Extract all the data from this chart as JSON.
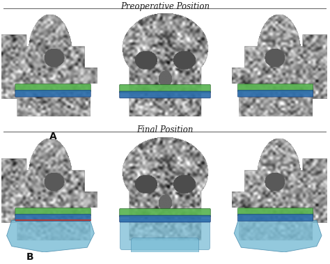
{
  "title_top": "Preoperative Position",
  "title_bottom": "Final Position",
  "label_a": "A",
  "label_b": "B",
  "bg_color": "#ffffff",
  "title_fontsize": 8.5,
  "label_fontsize": 10,
  "figsize": [
    4.74,
    3.79
  ],
  "dpi": 100,
  "teeth_green": "#5ab552",
  "teeth_blue": "#2e6fad",
  "jaw_blue_light": "#7bbdd6",
  "teeth_red": "#cc3322",
  "line_color": "#666666",
  "panel_bg": "#c8c8c8",
  "skull_base": "#a8a8a8"
}
